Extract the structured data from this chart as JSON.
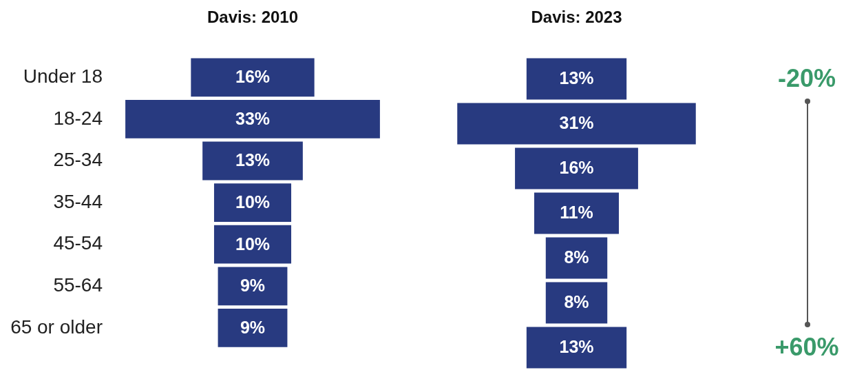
{
  "chart_data": [
    {
      "type": "other",
      "title": "Davis: 2010",
      "categories": [
        "Under 18",
        "18-24",
        "25-34",
        "35-44",
        "45-54",
        "55-64",
        "65 or older"
      ],
      "values": [
        16,
        33,
        13,
        10,
        10,
        9,
        9
      ],
      "value_labels": [
        "16%",
        "33%",
        "13%",
        "10%",
        "10%",
        "9%",
        "9%"
      ],
      "color": "#283a80"
    },
    {
      "type": "other",
      "title": "Davis: 2023",
      "categories": [
        null,
        null,
        null,
        null,
        null,
        null,
        null
      ],
      "values": [
        13,
        31,
        16,
        11,
        8,
        8,
        13
      ],
      "value_labels": [
        "13%",
        "31%",
        "16%",
        "11%",
        "8%",
        "8%",
        "13%"
      ],
      "color": "#283a80",
      "annotations": [
        "-20%",
        "+60%"
      ]
    }
  ]
}
